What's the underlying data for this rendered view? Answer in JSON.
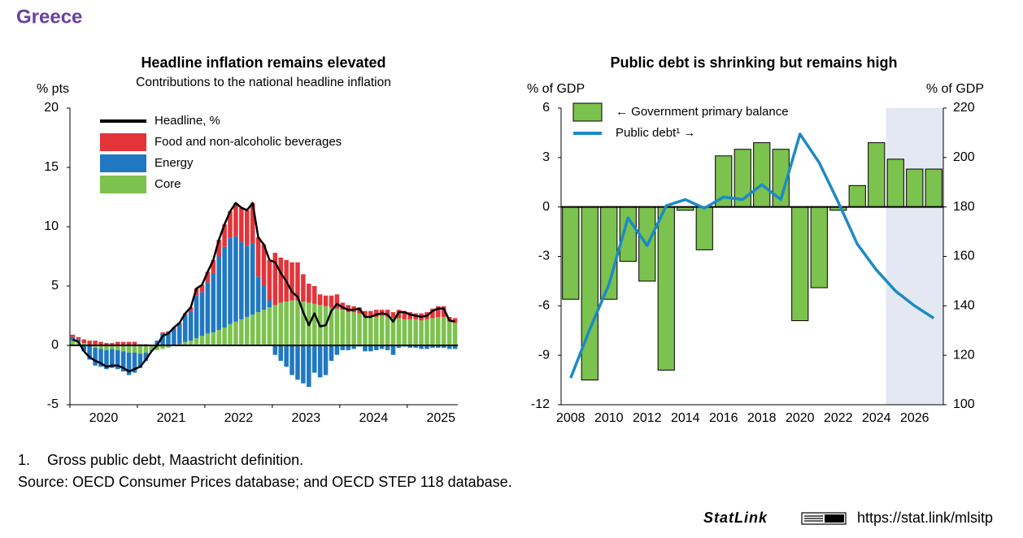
{
  "page_title": "Greece",
  "chart_data": [
    {
      "type": "bar",
      "stacked": true,
      "title": "Headline inflation remains elevated",
      "subtitle": "Contributions to the national headline inflation",
      "y_label": "% pts",
      "categories": [
        null,
        null,
        null,
        null,
        null,
        null,
        null,
        null,
        null,
        null,
        null,
        null,
        null,
        null,
        null,
        null,
        null,
        null,
        null,
        null,
        null,
        null,
        null,
        null,
        null,
        null,
        null,
        null,
        null,
        null,
        null,
        null,
        null,
        null,
        null,
        null,
        null,
        null,
        null,
        null,
        null,
        null,
        null,
        null,
        null,
        null,
        null,
        null,
        null,
        null,
        null,
        null,
        null,
        null,
        null,
        null,
        null,
        null,
        null,
        null,
        null,
        null,
        null,
        null,
        null,
        null,
        null,
        null,
        null
      ],
      "xtick_labels": [
        "2020",
        "2021",
        "2022",
        "2023",
        "2024",
        "2025"
      ],
      "ylim": [
        -5,
        20
      ],
      "yticks": [
        -5,
        0,
        5,
        10,
        15,
        20
      ],
      "series": [
        {
          "name": "Headline, %",
          "type": "line",
          "color": "#000000",
          "values": [
            0.5,
            0.3,
            -0.5,
            -1.0,
            -1.3,
            -1.5,
            -1.8,
            -1.7,
            -1.7,
            -1.9,
            -2.2,
            -2.0,
            -1.8,
            -1.2,
            -0.5,
            0.0,
            0.8,
            1.0,
            1.5,
            1.9,
            2.7,
            3.2,
            4.8,
            5.1,
            6.2,
            7.2,
            8.9,
            10.2,
            11.3,
            12.0,
            11.6,
            11.4,
            12.0,
            9.1,
            8.5,
            7.2,
            7.0,
            6.1,
            5.4,
            4.5,
            4.1,
            2.8,
            1.7,
            2.7,
            1.6,
            1.7,
            2.9,
            3.5,
            3.2,
            3.0,
            3.0,
            3.1,
            2.4,
            2.4,
            2.6,
            2.7,
            2.6,
            2.0,
            2.8,
            2.8,
            2.6,
            2.5,
            2.4,
            2.5,
            2.9,
            3.1,
            3.1,
            2.1,
            2.0
          ]
        },
        {
          "name": "Food and non-alcoholic beverages",
          "type": "bar",
          "color": "#e3343a",
          "values": [
            0.2,
            0.2,
            0.3,
            0.4,
            0.4,
            0.3,
            0.2,
            0.2,
            0.3,
            0.3,
            0.3,
            0.3,
            0.1,
            0.1,
            0.0,
            0.0,
            0.1,
            0.1,
            0.1,
            0.1,
            0.2,
            0.3,
            0.6,
            0.6,
            0.9,
            1.1,
            1.4,
            1.9,
            2.2,
            2.8,
            2.9,
            3.0,
            3.4,
            3.3,
            3.5,
            3.4,
            4.4,
            3.8,
            3.5,
            3.2,
            3.2,
            2.3,
            1.6,
            1.5,
            0.9,
            0.9,
            1.0,
            1.2,
            0.6,
            0.6,
            0.5,
            0.5,
            0.4,
            0.5,
            0.6,
            0.5,
            0.6,
            0.5,
            0.7,
            0.7,
            0.6,
            0.5,
            0.6,
            0.6,
            0.8,
            0.9,
            0.9,
            0.4,
            0.4
          ]
        },
        {
          "name": "Energy",
          "type": "bar",
          "color": "#1f78c1",
          "values": [
            0.3,
            0.2,
            -0.5,
            -1.2,
            -1.5,
            -1.5,
            -1.6,
            -1.6,
            -1.6,
            -1.7,
            -1.9,
            -1.7,
            -1.2,
            -0.7,
            0.0,
            0.4,
            1.0,
            1.1,
            1.4,
            1.7,
            2.2,
            2.5,
            3.6,
            3.7,
            4.3,
            5.0,
            6.2,
            6.8,
            7.3,
            7.2,
            6.5,
            6.0,
            6.0,
            3.0,
            2.0,
            0.6,
            -0.8,
            -1.3,
            -1.8,
            -2.5,
            -2.9,
            -3.2,
            -3.5,
            -2.3,
            -2.7,
            -2.5,
            -1.3,
            -0.8,
            -0.4,
            -0.4,
            -0.3,
            -0.1,
            -0.5,
            -0.5,
            -0.4,
            -0.3,
            -0.4,
            -0.8,
            -0.2,
            -0.1,
            -0.2,
            -0.2,
            -0.3,
            -0.3,
            -0.2,
            -0.2,
            -0.2,
            -0.3,
            -0.3
          ]
        },
        {
          "name": "Core",
          "type": "bar",
          "color": "#7cc24e",
          "values": [
            0.4,
            0.3,
            0.2,
            0.0,
            -0.2,
            -0.3,
            -0.4,
            -0.3,
            -0.4,
            -0.5,
            -0.6,
            -0.6,
            -0.7,
            -0.6,
            -0.5,
            -0.4,
            -0.3,
            -0.2,
            0.0,
            0.1,
            0.3,
            0.4,
            0.6,
            0.8,
            1.0,
            1.1,
            1.3,
            1.5,
            1.8,
            2.0,
            2.2,
            2.4,
            2.6,
            2.8,
            3.0,
            3.2,
            3.4,
            3.6,
            3.7,
            3.8,
            3.8,
            3.7,
            3.6,
            3.5,
            3.4,
            3.3,
            3.2,
            3.1,
            3.0,
            2.8,
            2.8,
            2.7,
            2.5,
            2.4,
            2.4,
            2.5,
            2.4,
            2.3,
            2.3,
            2.2,
            2.2,
            2.2,
            2.1,
            2.2,
            2.3,
            2.4,
            2.4,
            2.0,
            1.9
          ]
        }
      ]
    },
    {
      "type": "bar",
      "title": "Public debt is shrinking but remains high",
      "y_label": "% of GDP",
      "y2_label": "% of GDP",
      "categories": [
        "2008",
        null,
        "2010",
        null,
        "2012",
        null,
        "2014",
        null,
        "2016",
        null,
        "2018",
        null,
        "2020",
        null,
        "2022",
        null,
        "2024",
        null,
        "2026",
        null
      ],
      "ylim": [
        -12,
        6
      ],
      "yticks": [
        -12,
        -9,
        -6,
        -3,
        0,
        3,
        6
      ],
      "y2lim": [
        100,
        220
      ],
      "y2ticks": [
        100,
        120,
        140,
        160,
        180,
        200,
        220
      ],
      "shade_from_index": 17,
      "shade_color": "#e4e8f2",
      "series": [
        {
          "name": "← Government primary balance",
          "type": "bar",
          "color": "#7cc24e",
          "values": [
            -5.6,
            -10.5,
            -5.6,
            -3.3,
            -4.5,
            -9.9,
            -0.2,
            -2.6,
            3.1,
            3.5,
            3.9,
            3.5,
            -6.9,
            -4.9,
            -0.2,
            1.3,
            3.9,
            2.9,
            2.3,
            2.3
          ]
        },
        {
          "name": "Public debt¹ →",
          "type": "line",
          "axis": "y2",
          "color": "#1b8ac6",
          "values": [
            110.8,
            130.5,
            148.6,
            175.6,
            164.4,
            180.5,
            183,
            179.5,
            184,
            183,
            189,
            183,
            209.5,
            198,
            182,
            165,
            154.5,
            146,
            140,
            135
          ]
        }
      ]
    }
  ],
  "footnote": {
    "number": "1.",
    "text": "Gross public debt, Maastricht definition."
  },
  "source": "Source: OECD Consumer Prices database; and OECD STEP 118 database.",
  "statlink": {
    "label": "StatLink",
    "url": "https://stat.link/mlsitp"
  }
}
